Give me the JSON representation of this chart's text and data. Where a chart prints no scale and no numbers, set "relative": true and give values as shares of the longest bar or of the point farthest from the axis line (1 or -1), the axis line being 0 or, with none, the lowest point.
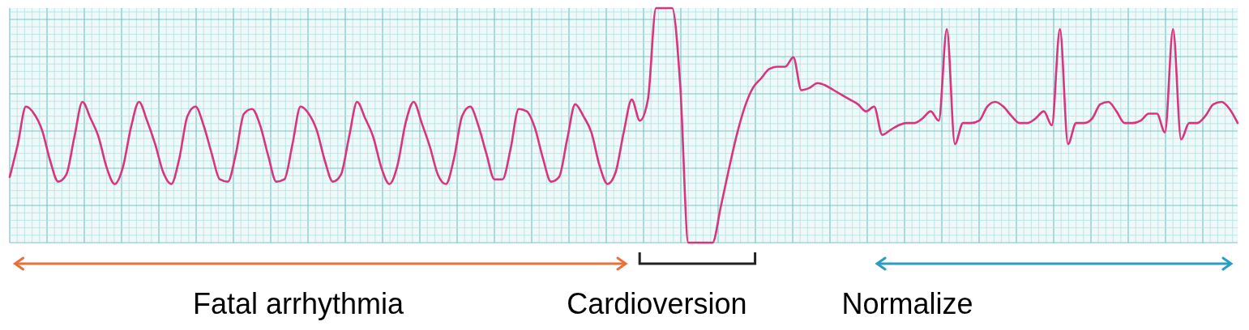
{
  "chart_data": {
    "type": "line",
    "relative": true,
    "grid": true,
    "categories": [
      null,
      null,
      null,
      null,
      null,
      null,
      null,
      null,
      null,
      null,
      null,
      null,
      null,
      null,
      null,
      null,
      null,
      null,
      null,
      null,
      null,
      null,
      null,
      null,
      null,
      null,
      null,
      null,
      null,
      null,
      null,
      null,
      null,
      null,
      null,
      null,
      null,
      null,
      null,
      null,
      null,
      null,
      null,
      null,
      null,
      null,
      null,
      null,
      null,
      null,
      null,
      null,
      null,
      null,
      null,
      null,
      null,
      null,
      null,
      null,
      null,
      null,
      null,
      null,
      null,
      null,
      null,
      null,
      null,
      null,
      null,
      null,
      null,
      null,
      null,
      null,
      null,
      null,
      null,
      null,
      null,
      null,
      null,
      null,
      null,
      null,
      null,
      null,
      null,
      null,
      null,
      null,
      null,
      null,
      null,
      null,
      null,
      null,
      null,
      null,
      null,
      null,
      null,
      null,
      null,
      null,
      null,
      null,
      null,
      null,
      null,
      null,
      null,
      null,
      null,
      null,
      null,
      null,
      null,
      null,
      null,
      null,
      null,
      null,
      null,
      null,
      null,
      null,
      null,
      null,
      null,
      null,
      null,
      null,
      null,
      null,
      null,
      null,
      null,
      null,
      null,
      null,
      null,
      null,
      null,
      null,
      null,
      null,
      null,
      null,
      null,
      null,
      null
    ],
    "series": [
      {
        "color": "#d9347f",
        "values": [
          0.28,
          0.42,
          0.58,
          0.55,
          0.48,
          0.35,
          0.26,
          0.29,
          0.45,
          0.6,
          0.53,
          0.45,
          0.32,
          0.25,
          0.32,
          0.49,
          0.6,
          0.52,
          0.42,
          0.3,
          0.25,
          0.36,
          0.54,
          0.58,
          0.5,
          0.38,
          0.27,
          0.26,
          0.38,
          0.55,
          0.57,
          0.5,
          0.37,
          0.26,
          0.27,
          0.42,
          0.58,
          0.55,
          0.48,
          0.35,
          0.26,
          0.29,
          0.45,
          0.6,
          0.53,
          0.45,
          0.32,
          0.25,
          0.33,
          0.51,
          0.6,
          0.51,
          0.41,
          0.29,
          0.25,
          0.36,
          0.54,
          0.58,
          0.5,
          0.38,
          0.27,
          0.27,
          0.4,
          0.57,
          0.56,
          0.49,
          0.36,
          0.26,
          0.28,
          0.44,
          0.59,
          0.54,
          0.47,
          0.33,
          0.25,
          0.3,
          0.47,
          0.61,
          0.52,
          0.61,
          1,
          1,
          1,
          0.67,
          0,
          0,
          0,
          0,
          0.15,
          0.31,
          0.46,
          0.58,
          0.66,
          0.7,
          0.74,
          0.75,
          0.75,
          0.79,
          0.65,
          0.66,
          0.68,
          0.67,
          0.65,
          0.63,
          0.61,
          0.59,
          0.56,
          0.58,
          0.46,
          0.48,
          0.5,
          0.51,
          0.51,
          0.53,
          0.56,
          0.52,
          0.91,
          0.42,
          0.51,
          0.51,
          0.52,
          0.58,
          0.6,
          0.58,
          0.54,
          0.51,
          0.51,
          0.53,
          0.56,
          0.5,
          0.91,
          0.42,
          0.51,
          0.51,
          0.53,
          0.59,
          0.6,
          0.56,
          0.51,
          0.51,
          0.52,
          0.55,
          0.55,
          0.47,
          0.91,
          0.44,
          0.51,
          0.51,
          0.54,
          0.59,
          0.6,
          0.57,
          0.51
        ]
      }
    ],
    "annotations": [
      "Fatal arrhythmia",
      "Cardioversion",
      "Normalize"
    ]
  }
}
